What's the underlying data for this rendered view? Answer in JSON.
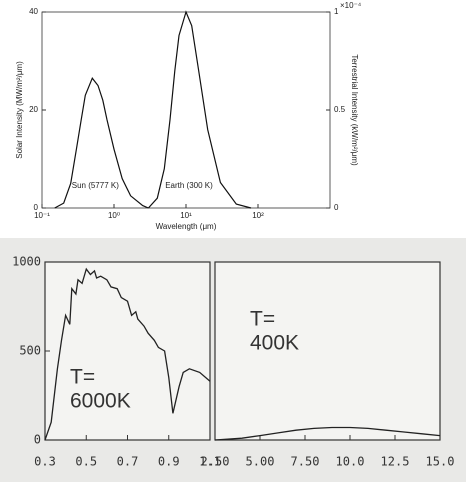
{
  "chart_data": [
    {
      "type": "line",
      "xscale": "log",
      "xlabel": "Wavelength (μm)",
      "ylabel": "Solar Intensity (MW/m²/μm)",
      "y2label": "Terrestrial Intensity (kW/m²/μm)",
      "y2_exponent": "×10⁻⁴",
      "xlim": [
        0.1,
        1000
      ],
      "xticks": [
        {
          "value": 0.1,
          "label": "10⁻¹"
        },
        {
          "value": 1,
          "label": "10⁰"
        },
        {
          "value": 10,
          "label": "10¹"
        },
        {
          "value": 100,
          "label": "10²"
        }
      ],
      "ylim": [
        0,
        40
      ],
      "yticks": [
        0,
        20,
        40
      ],
      "y2lim": [
        0,
        1
      ],
      "y2ticks": [
        0,
        0.5,
        1
      ],
      "series": [
        {
          "name": "Sun (5777 K)",
          "color": "#111111",
          "x": [
            0.15,
            0.2,
            0.25,
            0.3,
            0.35,
            0.4,
            0.5,
            0.6,
            0.7,
            0.8,
            1.0,
            1.3,
            1.7,
            2.5,
            3
          ],
          "values": [
            0,
            1,
            5,
            12,
            18,
            23,
            26.5,
            25,
            22,
            18,
            12,
            6,
            2.5,
            0.5,
            0
          ]
        },
        {
          "name": "Earth (300 K)",
          "color": "#111111",
          "axis": "y2",
          "x": [
            3,
            4,
            5,
            6,
            7,
            8,
            10,
            12,
            15,
            20,
            30,
            50,
            80
          ],
          "values": [
            0,
            0.05,
            0.2,
            0.45,
            0.7,
            0.88,
            1.0,
            0.93,
            0.7,
            0.4,
            0.13,
            0.02,
            0
          ]
        }
      ]
    },
    {
      "type": "line",
      "xlim": [
        0.3,
        1.1
      ],
      "xticks": [
        0.3,
        0.5,
        0.7,
        0.9,
        1.1
      ],
      "ylim": [
        0,
        1000
      ],
      "yticks": [
        0,
        500,
        1000
      ],
      "annotation": [
        "T=",
        "6000K"
      ],
      "series": [
        {
          "color": "#222222",
          "x": [
            0.3,
            0.33,
            0.36,
            0.38,
            0.4,
            0.42,
            0.43,
            0.45,
            0.46,
            0.48,
            0.5,
            0.52,
            0.54,
            0.55,
            0.57,
            0.6,
            0.62,
            0.65,
            0.67,
            0.7,
            0.72,
            0.74,
            0.75,
            0.78,
            0.8,
            0.83,
            0.85,
            0.88,
            0.9,
            0.92,
            0.95,
            0.97,
            1.0,
            1.05,
            1.1
          ],
          "values": [
            0,
            100,
            400,
            560,
            700,
            650,
            850,
            820,
            900,
            880,
            960,
            930,
            950,
            910,
            920,
            900,
            860,
            850,
            800,
            780,
            700,
            720,
            680,
            640,
            600,
            560,
            520,
            500,
            350,
            150,
            300,
            380,
            400,
            380,
            330
          ]
        }
      ]
    },
    {
      "type": "line",
      "xlim": [
        2.5,
        15
      ],
      "xticks": [
        {
          "value": 2.5,
          "label": "2.50"
        },
        {
          "value": 5,
          "label": "5.00"
        },
        {
          "value": 7.5,
          "label": "7.50"
        },
        {
          "value": 10,
          "label": "10.0"
        },
        {
          "value": 12.5,
          "label": "12.5"
        },
        {
          "value": 15,
          "label": "15.0"
        }
      ],
      "ylim": [
        0,
        1000
      ],
      "annotation": [
        "T=",
        "400K"
      ],
      "series": [
        {
          "color": "#222222",
          "x": [
            2.5,
            4,
            5,
            6,
            7,
            8,
            9,
            10,
            11,
            12,
            13,
            14,
            15
          ],
          "values": [
            0,
            10,
            25,
            40,
            55,
            65,
            70,
            70,
            65,
            55,
            45,
            35,
            25
          ]
        }
      ]
    }
  ]
}
